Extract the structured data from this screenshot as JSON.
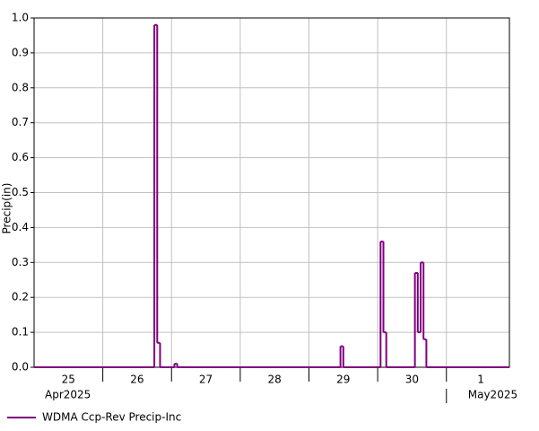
{
  "chart_data": {
    "type": "step",
    "y_label": "Precip(in)",
    "xlim": [
      0,
      166
    ],
    "ylim": [
      0,
      1
    ],
    "yticks": [
      {
        "value": 0,
        "label": "0.0"
      },
      {
        "value": 0.1,
        "label": "0.1"
      },
      {
        "value": 0.2,
        "label": "0.2"
      },
      {
        "value": 0.3,
        "label": "0.3"
      },
      {
        "value": 0.4,
        "label": "0.4"
      },
      {
        "value": 0.5,
        "label": "0.5"
      },
      {
        "value": 0.6,
        "label": "0.6"
      },
      {
        "value": 0.7,
        "label": "0.7"
      },
      {
        "value": 0.8,
        "label": "0.8"
      },
      {
        "value": 0.9,
        "label": "0.9"
      },
      {
        "value": 1,
        "label": "1.0"
      }
    ],
    "xgrid": [
      24,
      48,
      72,
      96,
      120,
      144
    ],
    "xticks": [
      {
        "value": 12,
        "label": "25"
      },
      {
        "value": 36,
        "label": "26"
      },
      {
        "value": 60,
        "label": "27"
      },
      {
        "value": 84,
        "label": "28"
      },
      {
        "value": 108,
        "label": "29"
      },
      {
        "value": 132,
        "label": "30"
      },
      {
        "value": 156,
        "label": "1"
      }
    ],
    "month_labels": [
      {
        "value": 0,
        "label": "Apr2025"
      },
      {
        "value": 144,
        "label": "May2025"
      }
    ],
    "grid": true,
    "legend": "bottom-left",
    "series": [
      {
        "name": "WDMA Ccp-Rev Precip-Inc",
        "color": "#800080",
        "x": [
          0,
          42,
          43,
          44,
          49,
          50,
          107,
          108,
          121,
          122,
          123,
          133,
          134,
          135,
          136,
          137
        ],
        "values": [
          0,
          0.98,
          0.07,
          0,
          0.01,
          0,
          0.06,
          0,
          0.36,
          0.1,
          0,
          0.27,
          0.1,
          0.3,
          0.08,
          0
        ]
      }
    ]
  }
}
